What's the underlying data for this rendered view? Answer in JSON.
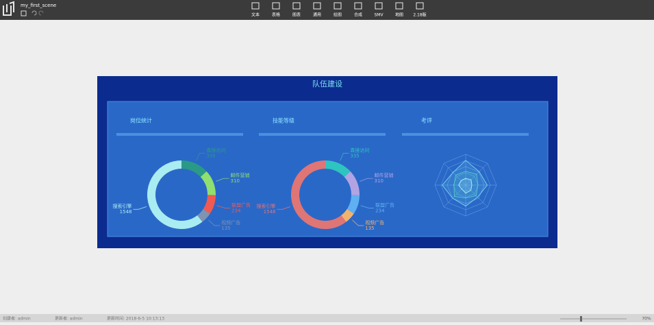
{
  "toolbar": {
    "scene_name": "my_first_scene",
    "tools": [
      "文本",
      "表格",
      "图表",
      "通用",
      "绘图",
      "合成",
      "SMV",
      "地图",
      "2.18版"
    ]
  },
  "dashboard": {
    "title": "队伍建设",
    "panels": [
      {
        "title": "岗位统计",
        "chart": {
          "type": "donut",
          "categories": [
            "直接访问",
            "邮件营销",
            "联盟广告",
            "视频广告",
            "搜索引擎"
          ],
          "values": [
            335,
            310,
            234,
            135,
            1548
          ],
          "colors": [
            "#2a9a86",
            "#8fe070",
            "#f05a52",
            "#7f93b3",
            "#a9ecf2"
          ]
        }
      },
      {
        "title": "技能等级",
        "chart": {
          "type": "donut",
          "categories": [
            "直接访问",
            "邮件营销",
            "联盟广告",
            "视频广告",
            "搜索引擎"
          ],
          "values": [
            335,
            310,
            234,
            135,
            1548
          ],
          "colors": [
            "#2ec4c0",
            "#b3a3e3",
            "#5fb0f2",
            "#f2b36f",
            "#e07575"
          ]
        }
      },
      {
        "title": "考评",
        "chart": {
          "type": "radar",
          "max": 100,
          "series": [
            {
              "color": "#7fe6f0",
              "values": [
                80,
                62,
                70,
                55,
                68,
                60,
                76,
                58
              ]
            },
            {
              "color": "#4fd6c8",
              "values": [
                45,
                50,
                40,
                48,
                42,
                52,
                38,
                46
              ]
            },
            {
              "color": "#b8f4ff",
              "values": [
                22,
                25,
                20,
                24,
                26,
                18,
                23,
                21
              ]
            }
          ]
        }
      }
    ]
  },
  "status_bar": {
    "items": [
      "创建者: admin",
      "更新者: admin",
      "更新时间: 2018-6-5 10:13:13"
    ],
    "zoom": "70%"
  }
}
